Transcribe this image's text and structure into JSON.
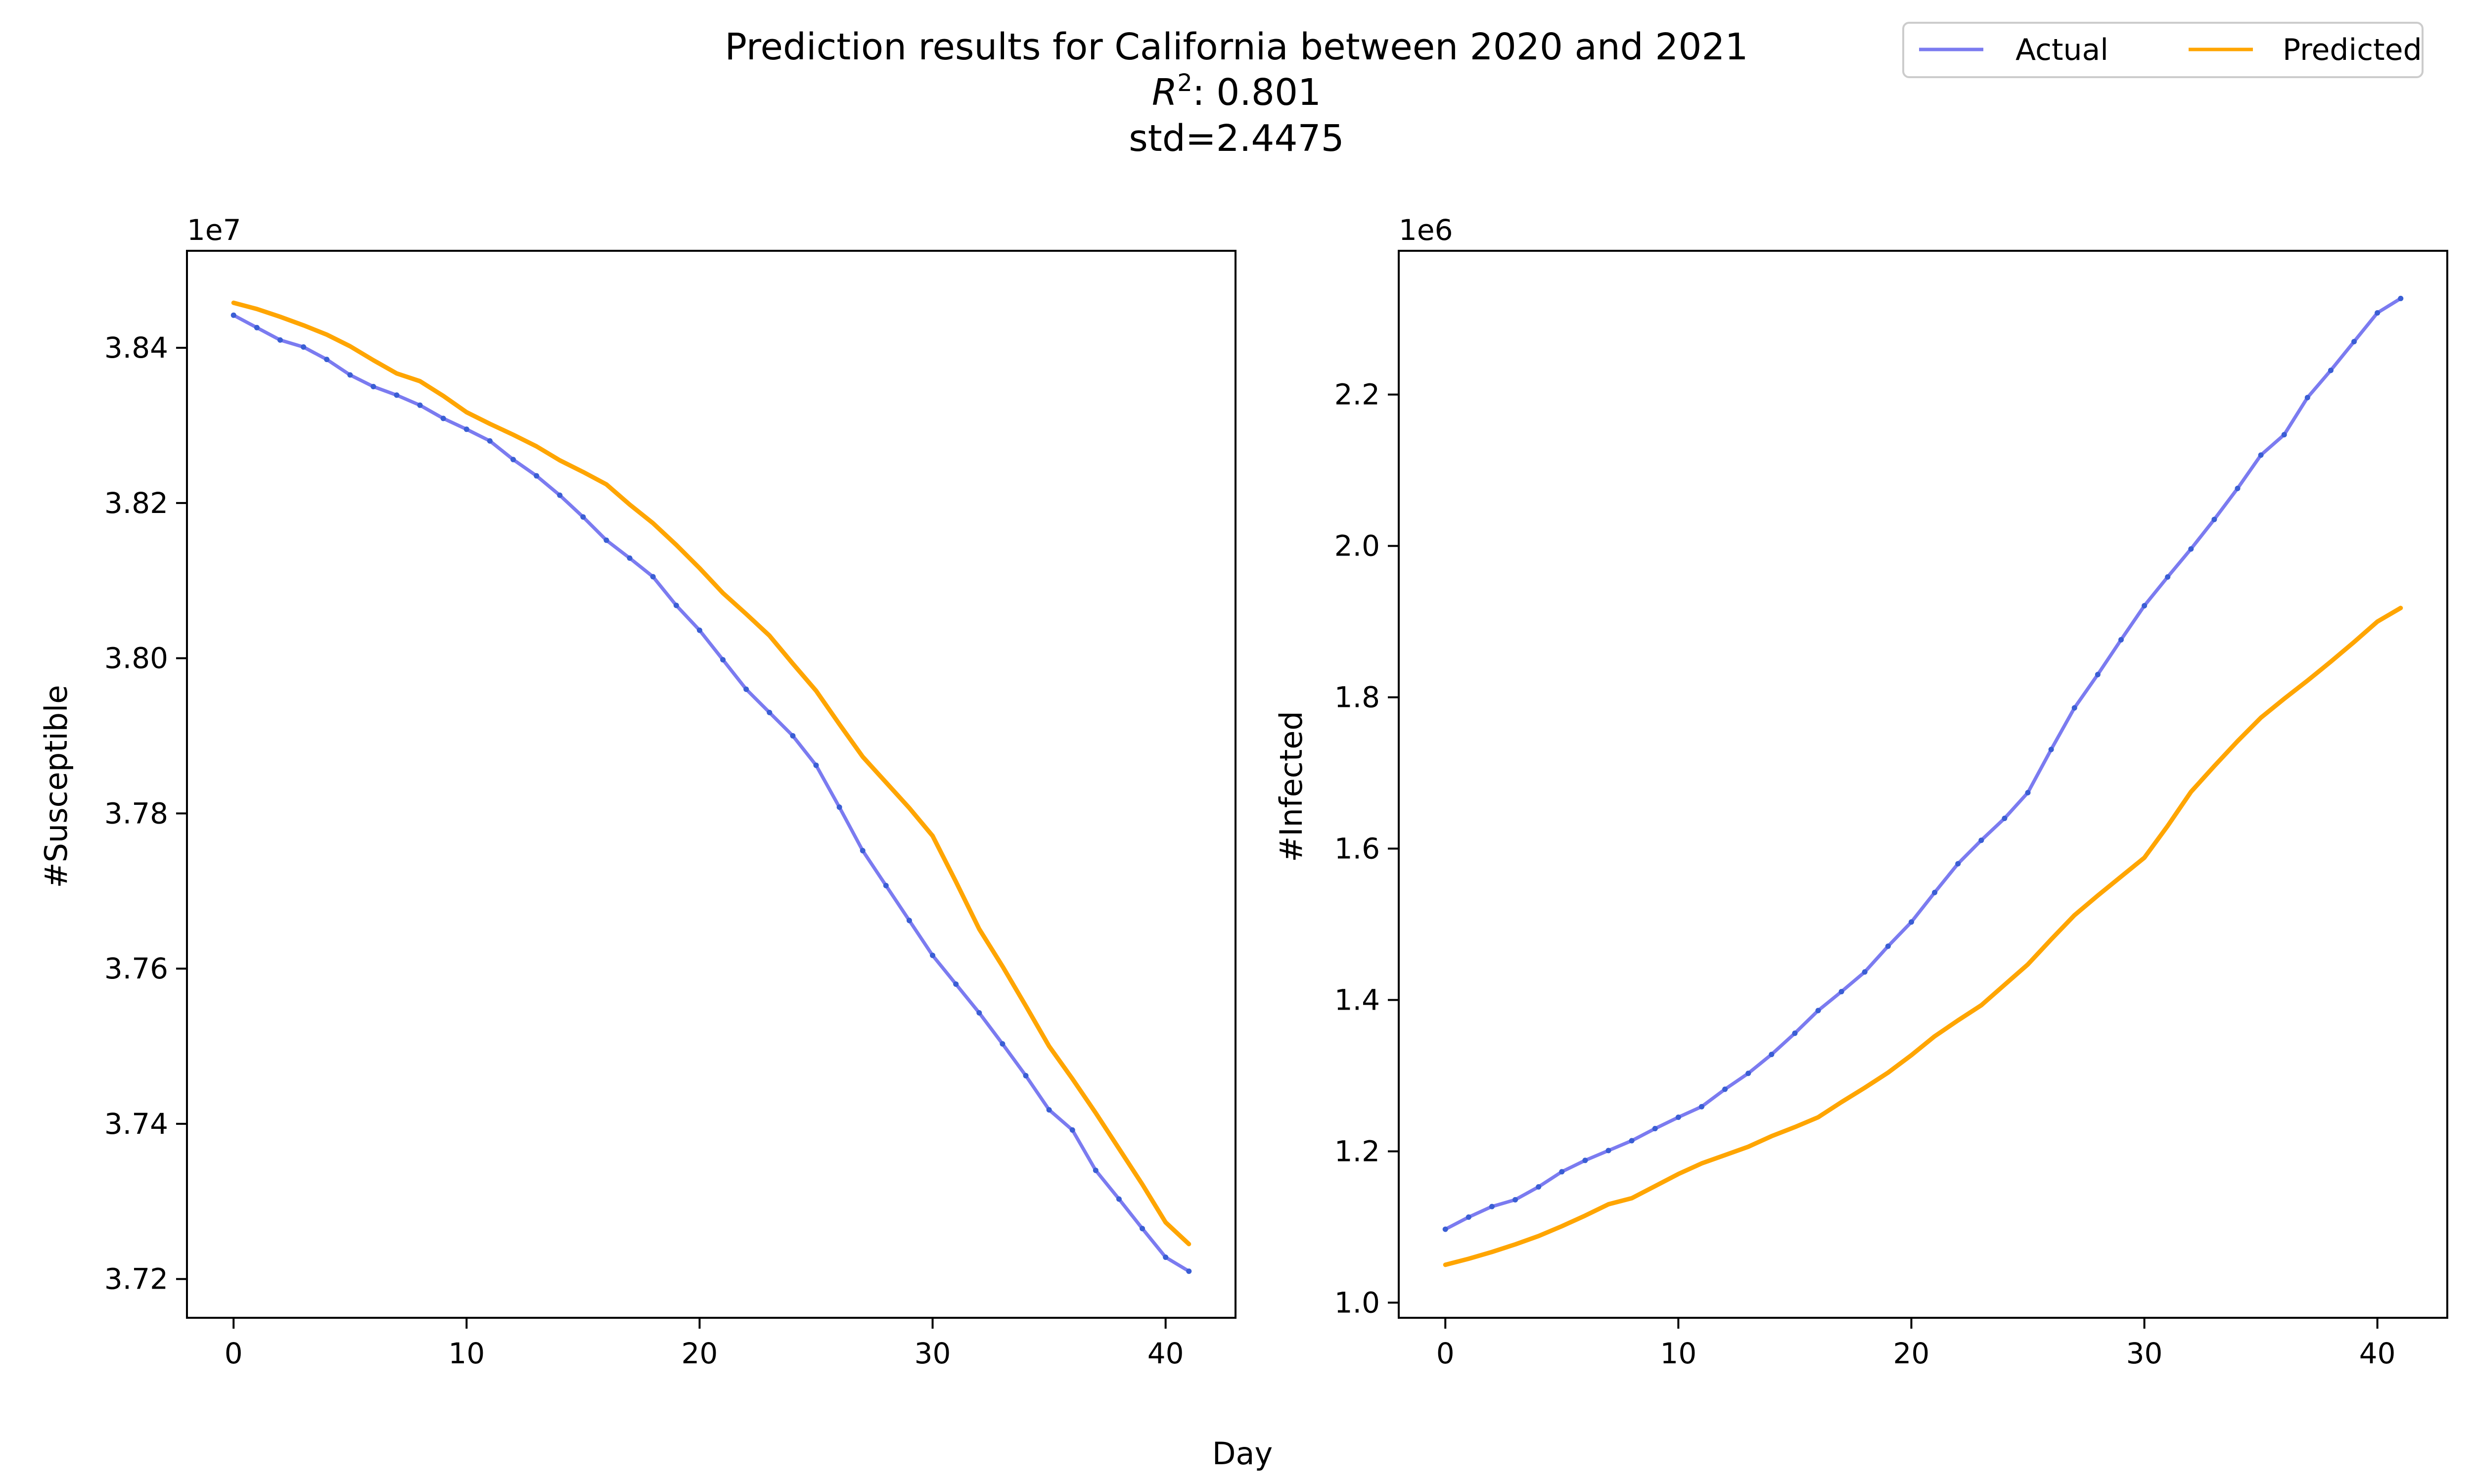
{
  "figure": {
    "title_lines": [
      "Prediction results for California between 2020 and 2021",
      "std=2.4475"
    ],
    "r2_prefix": "R",
    "r2_sup": "2",
    "r2_value": ": 0.801",
    "shared_xlabel": "Day"
  },
  "legend": {
    "placement": "top-right",
    "entries": [
      {
        "label": "Actual",
        "color": "#7b7bf0"
      },
      {
        "label": "Predicted",
        "color": "#ffa500"
      }
    ]
  },
  "colors": {
    "actual": "#7b7bf0",
    "actual_markers": "#3a5ed4",
    "predicted": "#ffa500"
  },
  "chart_data": [
    {
      "type": "line",
      "ylabel": "#Susceptible",
      "offset_text": "1e7",
      "xlim": [
        -2,
        43
      ],
      "ylim": [
        3.715,
        3.8525
      ],
      "xticks": [
        0,
        10,
        20,
        30,
        40
      ],
      "yticks": [
        3.72,
        3.74,
        3.76,
        3.78,
        3.8,
        3.82,
        3.84
      ],
      "ytick_labels": [
        "3.72",
        "3.74",
        "3.76",
        "3.78",
        "3.80",
        "3.82",
        "3.84"
      ],
      "series": [
        {
          "name": "Actual",
          "x": [
            0,
            1,
            2,
            3,
            4,
            5,
            6,
            7,
            8,
            9,
            10,
            11,
            12,
            13,
            14,
            15,
            16,
            17,
            18,
            19,
            20,
            21,
            22,
            23,
            24,
            25,
            26,
            27,
            28,
            29,
            30,
            31,
            32,
            33,
            34,
            35,
            36,
            37,
            38,
            39,
            40,
            41
          ],
          "values": [
            3.8442,
            3.8426,
            3.841,
            3.8401,
            3.8385,
            3.8365,
            3.835,
            3.8339,
            3.8326,
            3.8309,
            3.8295,
            3.828,
            3.8256,
            3.8235,
            3.821,
            3.8182,
            3.8152,
            3.8129,
            3.8105,
            3.8068,
            3.8036,
            3.7998,
            3.796,
            3.793,
            3.79,
            3.7862,
            3.7808,
            3.7752,
            3.7707,
            3.7662,
            3.7617,
            3.758,
            3.7543,
            3.7503,
            3.7462,
            3.7418,
            3.7392,
            3.734,
            3.7303,
            3.7265,
            3.7228,
            3.721
          ]
        },
        {
          "name": "Predicted",
          "x": [
            0,
            1,
            2,
            3,
            4,
            5,
            6,
            7,
            8,
            9,
            10,
            11,
            12,
            13,
            14,
            15,
            16,
            17,
            18,
            19,
            20,
            21,
            22,
            23,
            24,
            25,
            26,
            27,
            28,
            29,
            30,
            31,
            32,
            33,
            34,
            35,
            36,
            37,
            38,
            39,
            40,
            41
          ],
          "values": [
            3.8458,
            3.845,
            3.844,
            3.8429,
            3.8417,
            3.8402,
            3.8384,
            3.8367,
            3.8357,
            3.8338,
            3.8317,
            3.8302,
            3.8288,
            3.8273,
            3.8255,
            3.824,
            3.8224,
            3.8198,
            3.8174,
            3.8146,
            3.8116,
            3.8084,
            3.8057,
            3.8029,
            3.7993,
            3.7958,
            3.7915,
            3.7873,
            3.784,
            3.7807,
            3.7771,
            3.7712,
            3.7651,
            3.7603,
            3.7552,
            3.75,
            3.7458,
            3.7414,
            3.7368,
            3.7322,
            3.7273,
            3.7245
          ]
        }
      ]
    },
    {
      "type": "line",
      "ylabel": "#Infected",
      "offset_text": "1e6",
      "xlim": [
        -2,
        43
      ],
      "ylim": [
        0.98,
        2.39
      ],
      "xticks": [
        0,
        10,
        20,
        30,
        40
      ],
      "yticks": [
        1.0,
        1.2,
        1.4,
        1.6,
        1.8,
        2.0,
        2.2
      ],
      "ytick_labels": [
        "1.0",
        "1.2",
        "1.4",
        "1.6",
        "1.8",
        "2.0",
        "2.2"
      ],
      "series": [
        {
          "name": "Actual",
          "x": [
            0,
            1,
            2,
            3,
            4,
            5,
            6,
            7,
            8,
            9,
            10,
            11,
            12,
            13,
            14,
            15,
            16,
            17,
            18,
            19,
            20,
            21,
            22,
            23,
            24,
            25,
            26,
            27,
            28,
            29,
            30,
            31,
            32,
            33,
            34,
            35,
            36,
            37,
            38,
            39,
            40,
            41
          ],
          "values": [
            1.097,
            1.113,
            1.127,
            1.136,
            1.153,
            1.173,
            1.188,
            1.201,
            1.214,
            1.23,
            1.245,
            1.259,
            1.282,
            1.303,
            1.328,
            1.356,
            1.386,
            1.411,
            1.437,
            1.471,
            1.503,
            1.542,
            1.58,
            1.611,
            1.64,
            1.674,
            1.731,
            1.786,
            1.83,
            1.876,
            1.921,
            1.959,
            1.996,
            2.035,
            2.076,
            2.12,
            2.147,
            2.196,
            2.232,
            2.27,
            2.308,
            2.327
          ]
        },
        {
          "name": "Predicted",
          "x": [
            0,
            1,
            2,
            3,
            4,
            5,
            6,
            7,
            8,
            9,
            10,
            11,
            12,
            13,
            14,
            15,
            16,
            17,
            18,
            19,
            20,
            21,
            22,
            23,
            24,
            25,
            26,
            27,
            28,
            29,
            30,
            31,
            32,
            33,
            34,
            35,
            36,
            37,
            38,
            39,
            40,
            41
          ],
          "values": [
            1.05,
            1.058,
            1.067,
            1.077,
            1.088,
            1.101,
            1.115,
            1.13,
            1.138,
            1.154,
            1.17,
            1.184,
            1.195,
            1.206,
            1.22,
            1.232,
            1.245,
            1.265,
            1.284,
            1.304,
            1.327,
            1.352,
            1.373,
            1.393,
            1.42,
            1.447,
            1.48,
            1.512,
            1.538,
            1.563,
            1.588,
            1.63,
            1.675,
            1.709,
            1.742,
            1.773,
            1.798,
            1.822,
            1.847,
            1.873,
            1.9,
            1.918
          ]
        }
      ]
    }
  ]
}
